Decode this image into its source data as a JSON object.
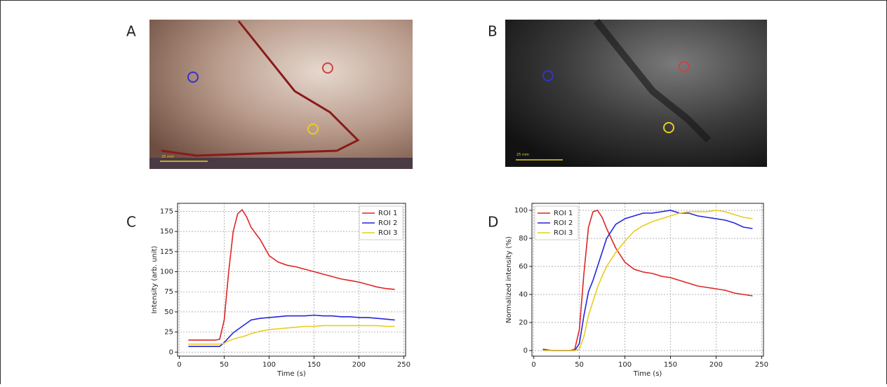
{
  "panels": [
    {
      "label": "A",
      "scale_label": "25 mm"
    },
    {
      "label": "B",
      "scale_label": "25 mm"
    }
  ],
  "chart_data": [
    {
      "type": "line",
      "panel_label": "C",
      "xlabel": "Time (s)",
      "ylabel": "Intensity (arb. unit)",
      "x": [
        10,
        20,
        30,
        40,
        45,
        50,
        55,
        60,
        65,
        70,
        75,
        80,
        90,
        100,
        110,
        120,
        130,
        140,
        150,
        160,
        170,
        180,
        190,
        200,
        210,
        220,
        230,
        240
      ],
      "series": [
        {
          "name": "ROI 1",
          "color": "#e02424",
          "values": [
            15,
            15,
            15,
            15,
            16,
            40,
            100,
            150,
            172,
            177,
            168,
            155,
            140,
            120,
            112,
            108,
            106,
            103,
            100,
            97,
            94,
            91,
            89,
            87,
            84,
            81,
            79,
            78
          ]
        },
        {
          "name": "ROI 2",
          "color": "#2424e0",
          "values": [
            7,
            7,
            7,
            7,
            7,
            12,
            18,
            24,
            28,
            32,
            36,
            40,
            42,
            43,
            44,
            45,
            45,
            45,
            46,
            45,
            45,
            44,
            44,
            43,
            43,
            42,
            41,
            40
          ]
        },
        {
          "name": "ROI 3",
          "color": "#e8cc20",
          "values": [
            10,
            10,
            10,
            10,
            10,
            11,
            14,
            16,
            18,
            19,
            21,
            23,
            26,
            28,
            29,
            30,
            31,
            32,
            32,
            33,
            33,
            33,
            33,
            33,
            33,
            33,
            32,
            32
          ]
        }
      ],
      "xlim": [
        -2,
        252
      ],
      "xticks": [
        0,
        50,
        100,
        150,
        200,
        250
      ],
      "ylim": [
        -5,
        185
      ],
      "yticks": [
        0,
        25,
        50,
        75,
        100,
        125,
        150,
        175
      ],
      "grid": true,
      "legend": "upper-right"
    },
    {
      "type": "line",
      "panel_label": "D",
      "xlabel": "Time (s)",
      "ylabel": "Normalized intensity (%)",
      "x": [
        10,
        20,
        30,
        40,
        45,
        50,
        55,
        60,
        65,
        70,
        75,
        80,
        90,
        100,
        110,
        120,
        130,
        140,
        150,
        160,
        170,
        180,
        190,
        200,
        210,
        220,
        230,
        240
      ],
      "series": [
        {
          "name": "ROI 1",
          "color": "#e02424",
          "values": [
            1,
            0,
            0,
            0,
            1,
            15,
            55,
            88,
            99,
            100,
            95,
            87,
            73,
            63,
            58,
            56,
            55,
            53,
            52,
            50,
            48,
            46,
            45,
            44,
            43,
            41,
            40,
            39
          ]
        },
        {
          "name": "ROI 2",
          "color": "#2424e0",
          "values": [
            0.5,
            0,
            0,
            0,
            0,
            5,
            25,
            42,
            50,
            60,
            70,
            80,
            90,
            94,
            96,
            98,
            98,
            99,
            100,
            98,
            98,
            96,
            95,
            94,
            93,
            91,
            88,
            87
          ]
        },
        {
          "name": "ROI 3",
          "color": "#e8cc20",
          "values": [
            0,
            0,
            0,
            0,
            0,
            1,
            10,
            25,
            35,
            45,
            53,
            60,
            70,
            78,
            85,
            89,
            92,
            94,
            96,
            98,
            99,
            99,
            99,
            100,
            99,
            97,
            95,
            94
          ]
        }
      ],
      "xlim": [
        -2,
        252
      ],
      "xticks": [
        0,
        50,
        100,
        150,
        200,
        250
      ],
      "ylim": [
        -4,
        105
      ],
      "yticks": [
        0,
        20,
        40,
        60,
        80,
        100
      ],
      "grid": true,
      "legend": "upper-left"
    }
  ]
}
